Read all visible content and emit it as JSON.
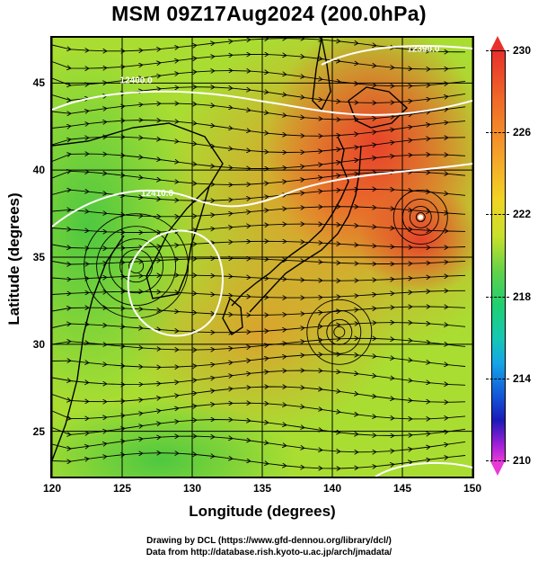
{
  "title": "MSM 09Z17Aug2024 (200.0hPa)",
  "x_axis": {
    "label": "Longitude (degrees)",
    "min": 120,
    "max": 150,
    "ticks": [
      "120",
      "125",
      "130",
      "135",
      "140",
      "145",
      "150"
    ]
  },
  "y_axis": {
    "label": "Latitude  (degrees)",
    "min": 22.4,
    "max": 47.6,
    "ticks": [
      "25",
      "30",
      "35",
      "40",
      "45"
    ]
  },
  "colorbar": {
    "min": 210,
    "max": 230,
    "labels": [
      "230",
      "226",
      "222",
      "218",
      "214",
      "210"
    ],
    "colors": {
      "max": "#e8302a",
      "min": "#e83ad8"
    }
  },
  "contours": [
    {
      "label": "12390.0",
      "lon": 146.5,
      "lat": 46.8
    },
    {
      "label": "12400.0",
      "lon": 126.0,
      "lat": 45.0
    },
    {
      "label": "12410.0",
      "lon": 127.5,
      "lat": 38.5
    }
  ],
  "features": {
    "cyclone_center": {
      "lon": 146.3,
      "lat": 37.3
    },
    "anticyclone_west": {
      "lon": 126.0,
      "lat": 34.5
    },
    "eddy_south": {
      "lon": 140.5,
      "lat": 30.7
    }
  },
  "credits": [
    "Drawing by DCL (https://www.gfd-dennou.org/library/dcl/)",
    "Data from http://database.rish.kyoto-u.ac.jp/arch/jmadata/"
  ]
}
